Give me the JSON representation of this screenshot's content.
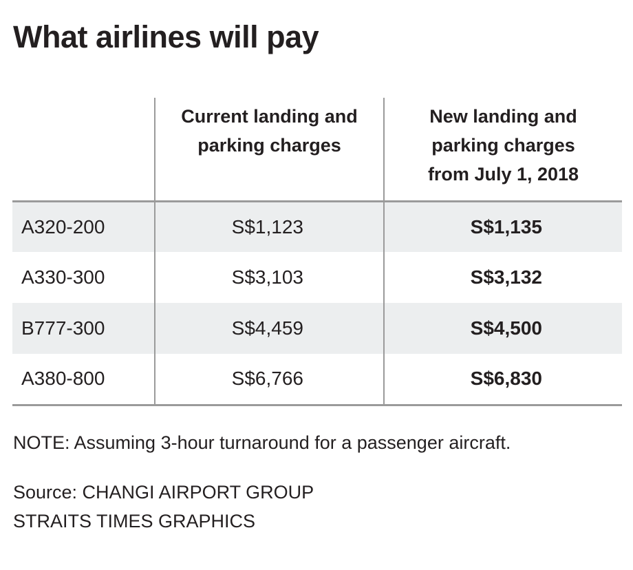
{
  "chart_data": {
    "type": "table",
    "title": "What airlines will pay",
    "columns": [
      "",
      "Current landing and parking charges",
      "New landing and parking charges from July 1, 2018"
    ],
    "header_lines": {
      "current": [
        "Current landing and",
        "parking charges"
      ],
      "new": [
        "New landing and",
        "parking charges",
        "from July 1, 2018"
      ]
    },
    "rows": [
      {
        "aircraft": "A320-200",
        "current": "S$1,123",
        "new": "S$1,135"
      },
      {
        "aircraft": "A330-300",
        "current": "S$3,103",
        "new": "S$3,132"
      },
      {
        "aircraft": "B777-300",
        "current": "S$4,459",
        "new": "S$4,500"
      },
      {
        "aircraft": "A380-800",
        "current": "S$6,766",
        "new": "S$6,830"
      }
    ],
    "values_current": [
      1123,
      3103,
      4459,
      6766
    ],
    "values_new": [
      1135,
      3132,
      4500,
      6830
    ],
    "note": "NOTE: Assuming 3-hour turnaround for a passenger aircraft.",
    "source_lines": [
      "Source: CHANGI AIRPORT GROUP",
      "STRAITS TIMES GRAPHICS"
    ],
    "colors": {
      "text": "#231f20",
      "row_shade": "#eceeef",
      "rule": "#9a9a9a"
    }
  }
}
